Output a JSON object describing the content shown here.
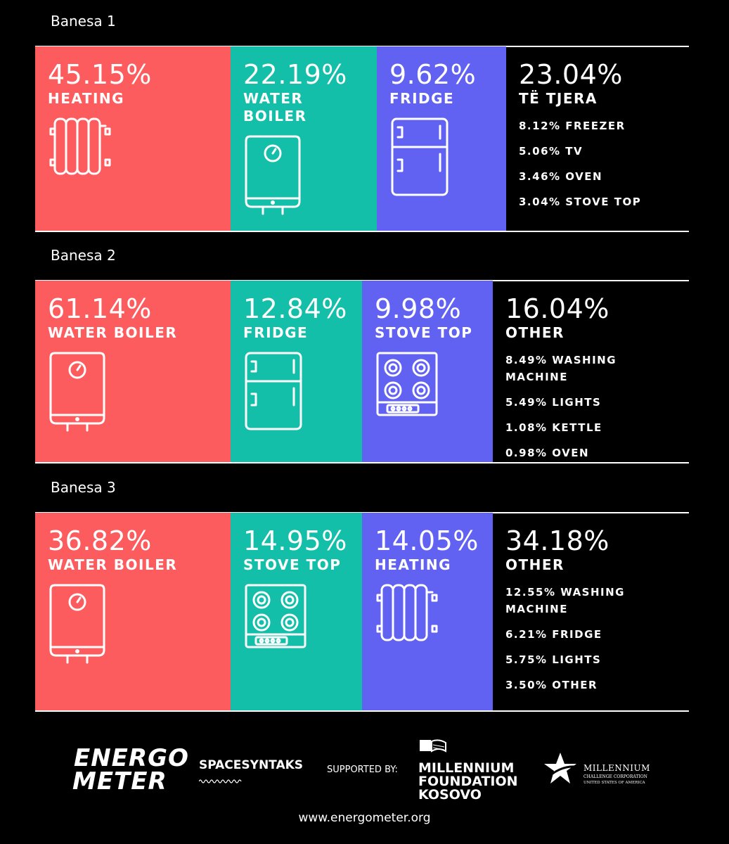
{
  "sections": [
    {
      "title": "Banesa 1",
      "cards": [
        {
          "value": "45.15%",
          "label": "HEATING"
        },
        {
          "value": "22.19%",
          "label": "WATER BOILER"
        },
        {
          "value": "9.62%",
          "label": "FRIDGE"
        }
      ],
      "other": {
        "value": "23.04%",
        "label": "TË TJERA",
        "items": [
          "8.12% FREEZER",
          "5.06% TV",
          "3.46% OVEN",
          "3.04% STOVE TOP"
        ]
      }
    },
    {
      "title": "Banesa 2",
      "cards": [
        {
          "value": "61.14%",
          "label": "WATER BOILER"
        },
        {
          "value": "12.84%",
          "label": "FRIDGE"
        },
        {
          "value": "9.98%",
          "label": "STOVE TOP"
        }
      ],
      "other": {
        "value": "16.04%",
        "label": "OTHER",
        "items": [
          "8.49% WASHING MACHINE",
          "5.49% LIGHTS",
          "1.08% KETTLE",
          "0.98% OVEN"
        ]
      }
    },
    {
      "title": "Banesa 3",
      "cards": [
        {
          "value": "36.82%",
          "label": "WATER BOILER"
        },
        {
          "value": "14.95%",
          "label": "STOVE TOP"
        },
        {
          "value": "14.05%",
          "label": "HEATING"
        }
      ],
      "other": {
        "value": "34.18%",
        "label": "OTHER",
        "items": [
          "12.55% WASHING MACHINE",
          "6.21% FRIDGE",
          "5.75% LIGHTS",
          "3.50% OTHER"
        ]
      }
    }
  ],
  "footer": {
    "energometer": [
      "ENERGO",
      "METER"
    ],
    "spacesyntaks": "SPACESYNTAKS",
    "supported_by": "SUPPORTED BY:",
    "mfk": [
      "MILLENNIUM",
      "FOUNDATION",
      "KOSOVO"
    ],
    "mcc": [
      "MILLENNIUM",
      "CHALLENGE CORPORATION",
      "UNITED STATES OF AMERICA"
    ],
    "url": "www.energometer.org"
  }
}
